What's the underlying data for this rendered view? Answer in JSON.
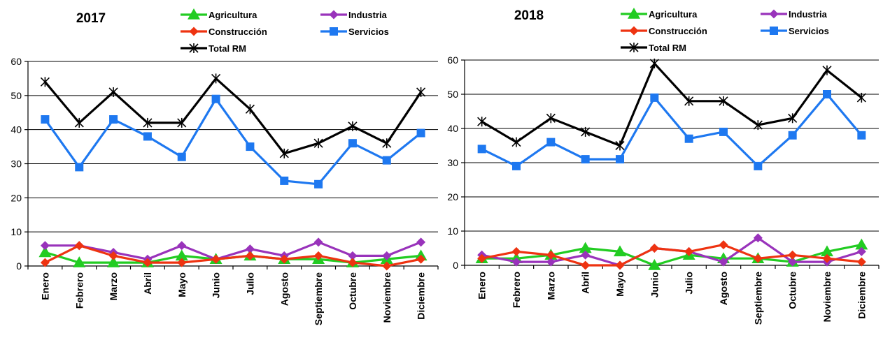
{
  "chart_data": [
    {
      "type": "line",
      "title": "2017",
      "categories": [
        "Enero",
        "Febrero",
        "Marzo",
        "Abril",
        "Mayo",
        "Junio",
        "Julio",
        "Agosto",
        "Septiembre",
        "Octubre",
        "Noviembre",
        "Diciembre"
      ],
      "ylim": [
        0,
        60
      ],
      "yticks": [
        0,
        10,
        20,
        30,
        40,
        50,
        60
      ],
      "grid": true,
      "legend": "top",
      "series": [
        {
          "name": "Agricultura",
          "color": "#22cc22",
          "marker": "triangle",
          "values": [
            4,
            1,
            1,
            1,
            3,
            2,
            3,
            2,
            2,
            1,
            2,
            3
          ]
        },
        {
          "name": "Industria",
          "color": "#9933bb",
          "marker": "diamond",
          "values": [
            6,
            6,
            4,
            2,
            6,
            2,
            5,
            3,
            7,
            3,
            3,
            7
          ]
        },
        {
          "name": "Construcción",
          "color": "#ee3311",
          "marker": "diamond",
          "values": [
            1,
            6,
            3,
            1,
            1,
            2,
            3,
            2,
            3,
            1,
            0,
            2
          ]
        },
        {
          "name": "Servicios",
          "color": "#1e78f0",
          "marker": "square",
          "values": [
            43,
            29,
            43,
            38,
            32,
            49,
            35,
            25,
            24,
            36,
            31,
            39
          ]
        },
        {
          "name": "Total RM",
          "color": "#000000",
          "marker": "star",
          "values": [
            54,
            42,
            51,
            42,
            42,
            55,
            46,
            33,
            36,
            41,
            36,
            51
          ]
        }
      ]
    },
    {
      "type": "line",
      "title": "2018",
      "categories": [
        "Enero",
        "Febrero",
        "Marzo",
        "Abril",
        "Mayo",
        "Junio",
        "Julio",
        "Agosto",
        "Septiembre",
        "Octubre",
        "Noviembre",
        "Diciembre"
      ],
      "ylim": [
        0,
        60
      ],
      "yticks": [
        0,
        10,
        20,
        30,
        40,
        50,
        60
      ],
      "grid": true,
      "legend": "top",
      "series": [
        {
          "name": "Agricultura",
          "color": "#22cc22",
          "marker": "triangle",
          "values": [
            2,
            2,
            3,
            5,
            4,
            0,
            3,
            2,
            2,
            1,
            4,
            6
          ]
        },
        {
          "name": "Industria",
          "color": "#9933bb",
          "marker": "diamond",
          "values": [
            3,
            1,
            1,
            3,
            0,
            5,
            4,
            1,
            8,
            1,
            1,
            4
          ]
        },
        {
          "name": "Construcción",
          "color": "#ee3311",
          "marker": "diamond",
          "values": [
            2,
            4,
            3,
            0,
            0,
            5,
            4,
            6,
            2,
            3,
            2,
            1
          ]
        },
        {
          "name": "Servicios",
          "color": "#1e78f0",
          "marker": "square",
          "values": [
            34,
            29,
            36,
            31,
            31,
            49,
            37,
            39,
            29,
            38,
            50,
            38
          ]
        },
        {
          "name": "Total RM",
          "color": "#000000",
          "marker": "star",
          "values": [
            42,
            36,
            43,
            39,
            35,
            59,
            48,
            48,
            41,
            43,
            57,
            49
          ]
        }
      ]
    }
  ]
}
